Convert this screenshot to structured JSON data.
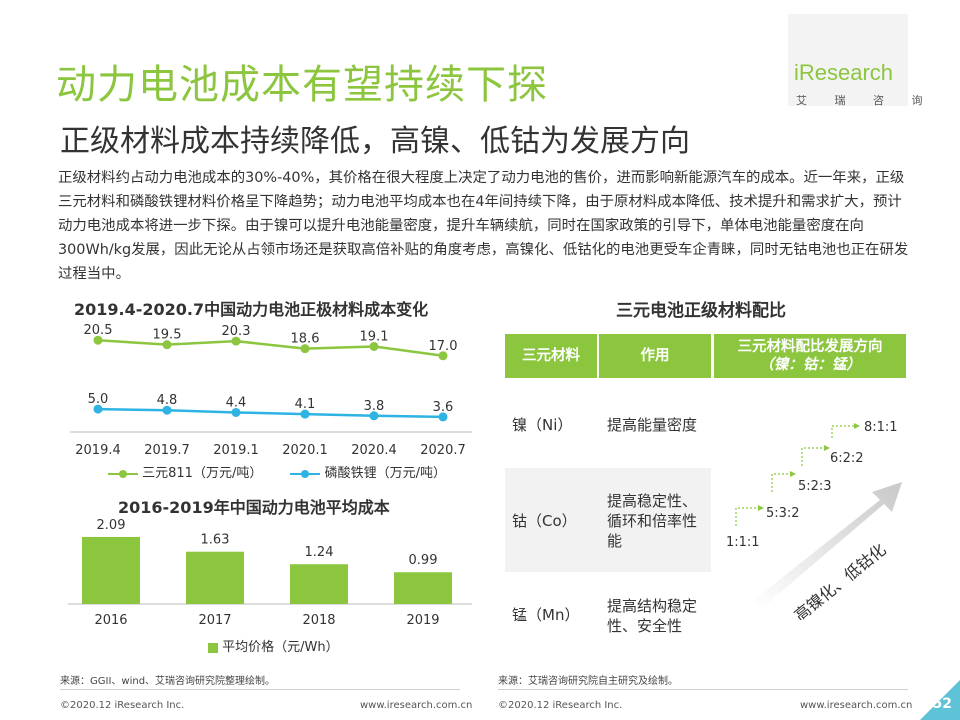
{
  "header": {
    "title": "动力电池成本有望持续下探",
    "subtitle": "正级材料成本持续降低，高镍、低钴为发展方向",
    "logo": {
      "name": "iResearch",
      "sub": "艾 瑞 咨 询"
    }
  },
  "intro": "正级材料约占动力电池成本的30%-40%，其价格在很大程度上决定了动力电池的售价，进而影响新能源汽车的成本。近一年来，正级三元材料和磷酸铁锂材料价格呈下降趋势；动力电池平均成本也在4年间持续下降，由于原材料成本降低、技术提升和需求扩大，预计动力电池成本将进一步下探。由于镍可以提升电池能量密度，提升车辆续航，同时在国家政策的引导下，单体电池能量密度在向300Wh/kg发展，因此无论从占领市场还是获取高倍补贴的角度考虑，高镍化、低钴化的电池更受车企青睐，同时无钴电池也正在研发过程当中。",
  "colors": {
    "green": "#8cc63f",
    "blue": "#2eb3e3",
    "teal": "#5ec3d6"
  },
  "chart_data": [
    {
      "type": "line",
      "title": "2019.4-2020.7中国动力电池正极材料成本变化",
      "categories": [
        "2019.4",
        "2019.7",
        "2019.1",
        "2020.1",
        "2020.4",
        "2020.7"
      ],
      "series": [
        {
          "name": "三元811（万元/吨）",
          "values": [
            20.5,
            19.5,
            20.3,
            18.6,
            19.1,
            17.0
          ],
          "labels": [
            "20.5",
            "19.5",
            "20.3",
            "18.6",
            "19.1",
            "17.0"
          ],
          "color": "#8cc63f"
        },
        {
          "name": "磷酸铁锂（万元/吨）",
          "values": [
            5.0,
            4.8,
            4.4,
            4.1,
            3.8,
            3.6
          ],
          "labels": [
            "5.0",
            "4.8",
            "4.4",
            "4.1",
            "3.8",
            "3.6"
          ],
          "color": "#2eb3e3"
        }
      ]
    },
    {
      "type": "bar",
      "title": "2016-2019年中国动力电池平均成本",
      "categories": [
        "2016",
        "2017",
        "2018",
        "2019"
      ],
      "values": [
        2.09,
        1.63,
        1.24,
        0.99
      ],
      "labels": [
        "2.09",
        "1.63",
        "1.24",
        "0.99"
      ],
      "series_name": "平均价格（元/Wh）",
      "ylim": [
        0,
        2.4
      ],
      "color": "#8cc63f"
    }
  ],
  "ratio_table": {
    "title": "三元电池正级材料配比",
    "headers": [
      "三元材料",
      "作用",
      "三元材料配比发展方向",
      "（镍：钴：锰）"
    ],
    "rows": [
      {
        "material": "镍（Ni）",
        "effect": "提高能量密度"
      },
      {
        "material": "钴（Co）",
        "effect": "提高稳定性、循环和倍率性能"
      },
      {
        "material": "锰（Mn）",
        "effect": "提高结构稳定性、安全性"
      }
    ],
    "steps": [
      "1:1:1",
      "5:3:2",
      "5:2:3",
      "6:2:2",
      "8:1:1"
    ],
    "trend_label": "高镍化、低钴化"
  },
  "sources": {
    "left": "来源：GGII、wind、艾瑞咨询研究院整理绘制。",
    "right": "来源：艾瑞咨询研究院自主研究及绘制。"
  },
  "footer": {
    "copyright": "©2020.12 iResearch Inc.",
    "website": "www.iresearch.com.cn",
    "page": "52"
  }
}
